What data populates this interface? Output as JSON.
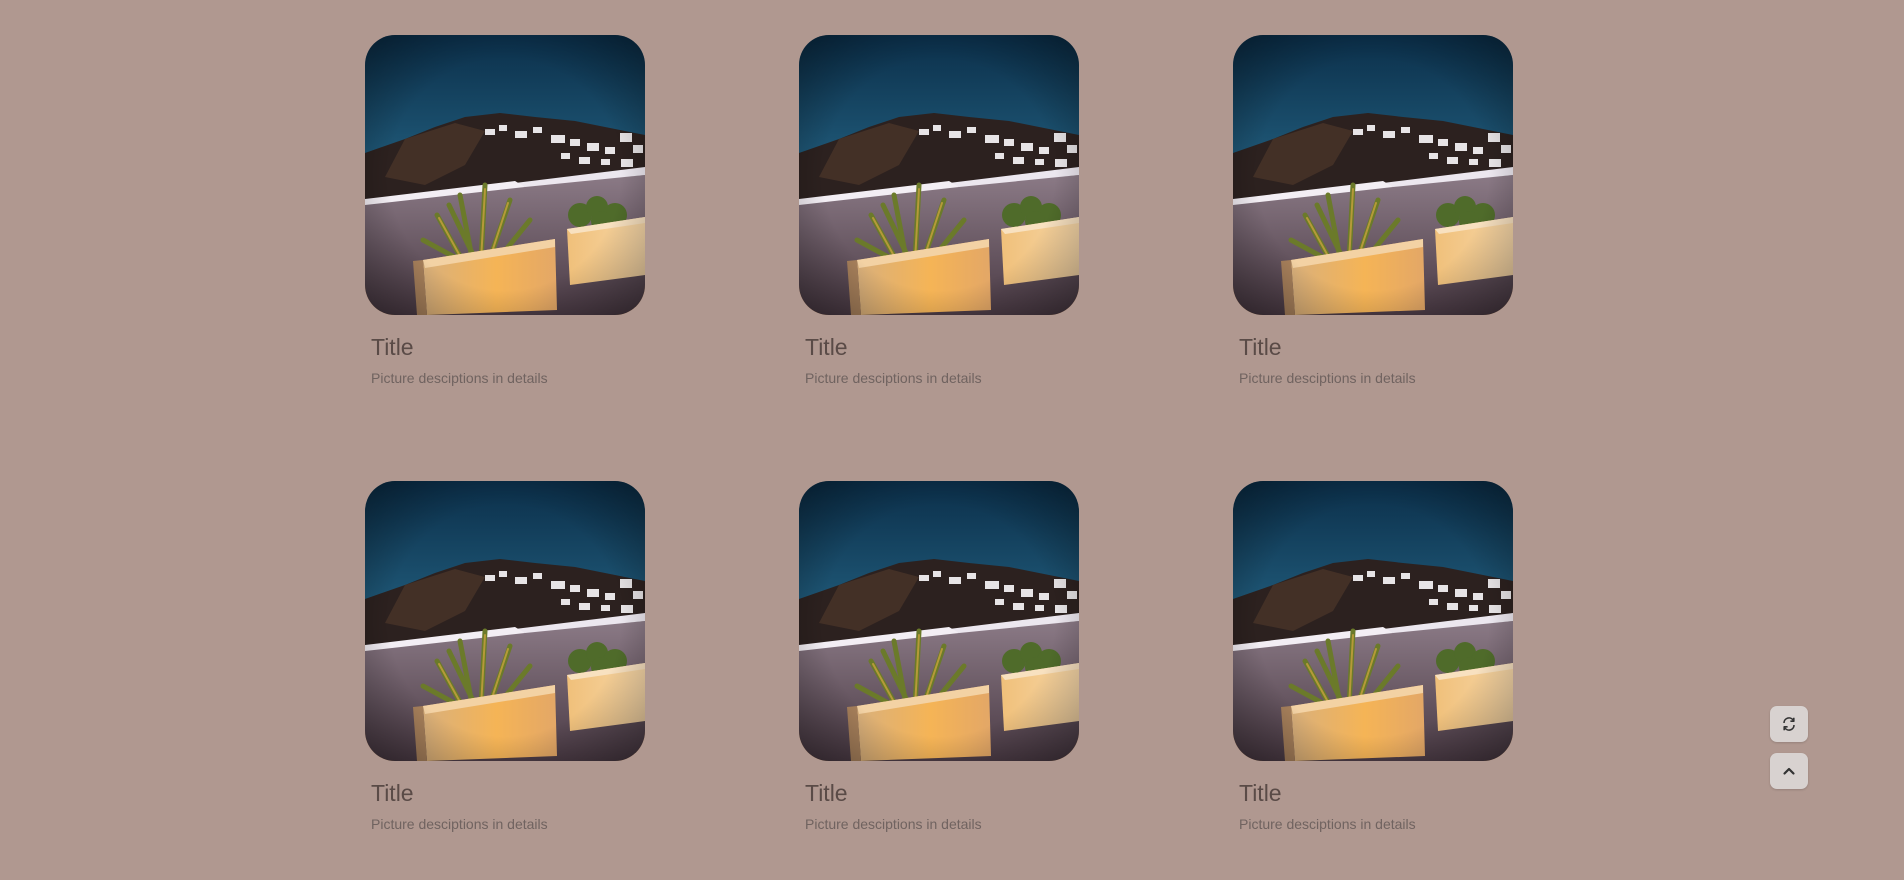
{
  "gallery": {
    "items": [
      {
        "title": "Title",
        "description": "Picture desciptions in details"
      },
      {
        "title": "Title",
        "description": "Picture desciptions in details"
      },
      {
        "title": "Title",
        "description": "Picture desciptions in details"
      },
      {
        "title": "Title",
        "description": "Picture desciptions in details"
      },
      {
        "title": "Title",
        "description": "Picture desciptions in details"
      },
      {
        "title": "Title",
        "description": "Picture desciptions in details"
      }
    ]
  },
  "floating_buttons": {
    "refresh_icon": "refresh-icon",
    "top_icon": "chevron-up-icon"
  },
  "colors": {
    "background": "#b09890",
    "title_text": "#5a4b47",
    "description_text": "#706360",
    "button_bg": "#d8d2d0"
  }
}
